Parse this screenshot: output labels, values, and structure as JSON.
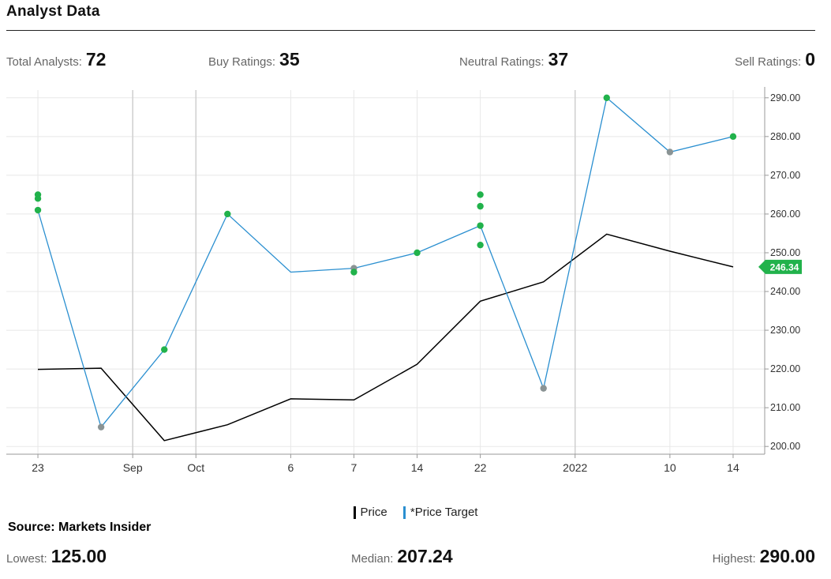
{
  "header": {
    "title": "Analyst Data"
  },
  "stats": {
    "total_label": "Total Analysts:",
    "total_value": "72",
    "buy_label": "Buy Ratings:",
    "buy_value": "35",
    "neutral_label": "Neutral Ratings:",
    "neutral_value": "37",
    "sell_label": "Sell Ratings:",
    "sell_value": "0"
  },
  "legend": {
    "price_label": "Price",
    "target_label": "*Price Target"
  },
  "source": "Source: Markets Insider",
  "summary": {
    "lowest_label": "Lowest:",
    "lowest_value": "125.00",
    "median_label": "Median:",
    "median_value": "207.24",
    "highest_label": "Highest:",
    "highest_value": "290.00"
  },
  "colors": {
    "price": "#000000",
    "target": "#2a8fd0",
    "buy_dot": "#21b24b",
    "neutral_dot": "#8a9394",
    "grid": "#e8e8e8",
    "current_badge": "#21b24b"
  },
  "chart_data": {
    "type": "line",
    "ylim": [
      198,
      292
    ],
    "yticks": [
      "200.00",
      "210.00",
      "220.00",
      "230.00",
      "240.00",
      "250.00",
      "260.00",
      "270.00",
      "280.00",
      "290.00"
    ],
    "ytick_values": [
      200,
      210,
      220,
      230,
      240,
      250,
      260,
      270,
      280,
      290
    ],
    "xlim": [
      0,
      12
    ],
    "xticks": [
      {
        "label": "23",
        "x": 0.5
      },
      {
        "label": "Sep",
        "x": 2
      },
      {
        "label": "Oct",
        "x": 3
      },
      {
        "label": "6",
        "x": 4.5
      },
      {
        "label": "7",
        "x": 5.5
      },
      {
        "label": "14",
        "x": 6.5
      },
      {
        "label": "22",
        "x": 7.5
      },
      {
        "label": "2022",
        "x": 9
      },
      {
        "label": "10",
        "x": 10.5
      },
      {
        "label": "14",
        "x": 11.5
      }
    ],
    "major_gridlines_x": [
      2,
      3,
      9
    ],
    "series": [
      {
        "name": "Price",
        "values": [
          [
            0.5,
            219.9
          ],
          [
            1.5,
            220.2
          ],
          [
            2.5,
            201.5
          ],
          [
            3.5,
            205.6
          ],
          [
            4.5,
            212.3
          ],
          [
            5.5,
            212.0
          ],
          [
            6.5,
            221.2
          ],
          [
            7.5,
            237.5
          ],
          [
            8.5,
            242.5
          ],
          [
            9.5,
            254.8
          ],
          [
            10.5,
            250.4
          ],
          [
            11.5,
            246.34
          ]
        ]
      },
      {
        "name": "*Price Target",
        "values": [
          [
            0.5,
            261
          ],
          [
            1.5,
            205
          ],
          [
            2.5,
            225
          ],
          [
            3.5,
            260
          ],
          [
            4.5,
            245
          ],
          [
            5.5,
            246
          ],
          [
            6.5,
            250
          ],
          [
            7.5,
            257
          ],
          [
            8.5,
            215
          ],
          [
            9.5,
            290
          ],
          [
            10.5,
            276
          ],
          [
            11.5,
            280
          ]
        ]
      }
    ],
    "rating_points": [
      {
        "x": 0.5,
        "y": 265,
        "rating": "buy"
      },
      {
        "x": 0.5,
        "y": 264,
        "rating": "buy"
      },
      {
        "x": 0.5,
        "y": 261,
        "rating": "buy"
      },
      {
        "x": 1.5,
        "y": 205,
        "rating": "neutral"
      },
      {
        "x": 2.5,
        "y": 225,
        "rating": "buy"
      },
      {
        "x": 3.5,
        "y": 260,
        "rating": "buy"
      },
      {
        "x": 5.5,
        "y": 246,
        "rating": "neutral"
      },
      {
        "x": 5.5,
        "y": 245,
        "rating": "buy"
      },
      {
        "x": 6.5,
        "y": 250,
        "rating": "buy"
      },
      {
        "x": 7.5,
        "y": 265,
        "rating": "buy"
      },
      {
        "x": 7.5,
        "y": 262,
        "rating": "buy"
      },
      {
        "x": 7.5,
        "y": 257,
        "rating": "buy"
      },
      {
        "x": 7.5,
        "y": 252,
        "rating": "buy"
      },
      {
        "x": 8.5,
        "y": 215,
        "rating": "neutral"
      },
      {
        "x": 9.5,
        "y": 290,
        "rating": "buy"
      },
      {
        "x": 10.5,
        "y": 276,
        "rating": "neutral"
      },
      {
        "x": 11.5,
        "y": 280,
        "rating": "buy"
      }
    ],
    "current_price": {
      "value": 246.34,
      "label": "246.34"
    }
  }
}
